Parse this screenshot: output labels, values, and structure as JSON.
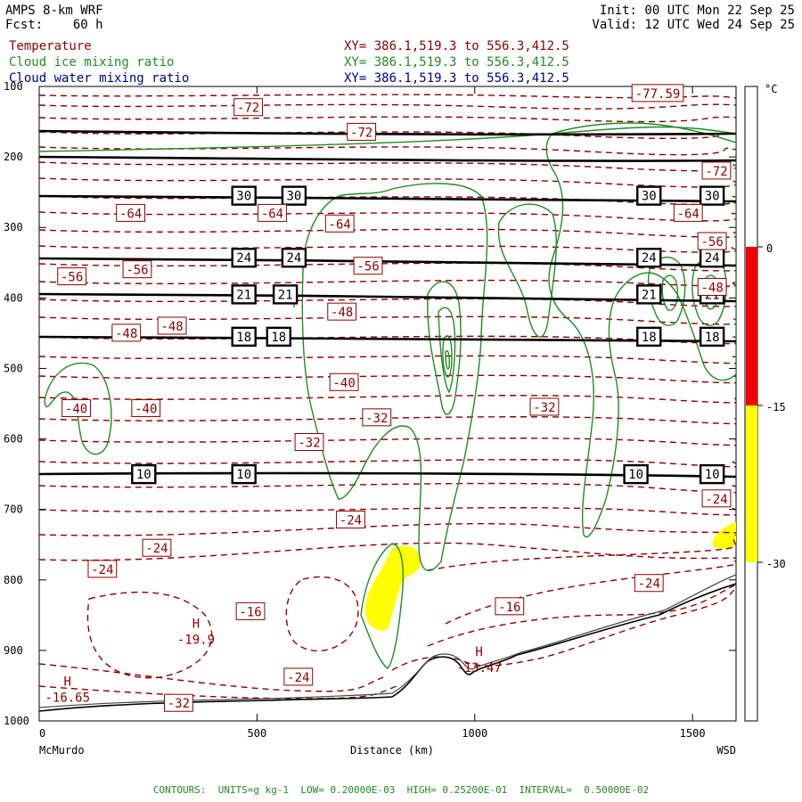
{
  "header": {
    "model": "AMPS 8-km WRF",
    "forecast": "Fcst:    60 h",
    "init": "Init: 00 UTC Mon 22 Sep 25",
    "valid": "Valid: 12 UTC Wed 24 Sep 25"
  },
  "legend": [
    {
      "name": "Temperature",
      "xy": "XY= 386.1,519.3 to 556.3,412.5",
      "color": "#8b0000"
    },
    {
      "name": "Cloud ice mixing ratio",
      "xy": "XY= 386.1,519.3 to 556.3,412.5",
      "color": "#228b22"
    },
    {
      "name": "Cloud water mixing ratio",
      "xy": "XY= 386.1,519.3 to 556.3,412.5",
      "color": "#00008b"
    }
  ],
  "footer": "CONTOURS:  UNITS=g kg-1  LOW= 0.20000E-03  HIGH= 0.25200E-01  INTERVAL=  0.50000E-02",
  "colorbar": {
    "unit": "°C",
    "ticks": [
      0,
      -15,
      -30
    ],
    "colors": {
      "top": "#ffffff",
      "red": "#ee0000",
      "yellow": "#ffff00",
      "bottom": "#ffffff"
    }
  },
  "chart_data": {
    "type": "cross-section",
    "xlabel": "Distance (km)",
    "ylabel": "",
    "xlim": [
      0,
      1600
    ],
    "ylim": [
      1000,
      100
    ],
    "x_ticks": [
      0,
      500,
      1000,
      1500
    ],
    "y_ticks": [
      100,
      200,
      300,
      400,
      500,
      600,
      700,
      800,
      900,
      1000
    ],
    "x_end_labels": {
      "left": "McMurdo",
      "right": "WSD"
    },
    "pressure_lines": [
      {
        "p": 165,
        "label": null,
        "labels_at": []
      },
      {
        "p": 200,
        "label": null,
        "labels_at": []
      },
      {
        "p": 255,
        "label": "30",
        "labels_at": [
          470,
          585,
          1400,
          1545
        ]
      },
      {
        "p": 343,
        "label": "24",
        "labels_at": [
          470,
          585,
          1400,
          1545
        ]
      },
      {
        "p": 395,
        "label": "21",
        "labels_at": [
          470,
          565,
          1400,
          1545
        ]
      },
      {
        "p": 455,
        "label": "18",
        "labels_at": [
          470,
          550,
          1400,
          1545
        ]
      },
      {
        "p": 650,
        "label": "10",
        "labels_at": [
          240,
          470,
          1370,
          1545
        ]
      }
    ],
    "temperature_labels": [
      {
        "x": 480,
        "p": 130,
        "text": "-72"
      },
      {
        "x": 740,
        "p": 165,
        "text": "-72"
      },
      {
        "x": 1555,
        "p": 220,
        "text": "-72"
      },
      {
        "x": 1420,
        "p": 110,
        "text": "-77.59"
      },
      {
        "x": 210,
        "p": 280,
        "text": "-64"
      },
      {
        "x": 535,
        "p": 280,
        "text": "-64"
      },
      {
        "x": 690,
        "p": 295,
        "text": "-64"
      },
      {
        "x": 1490,
        "p": 280,
        "text": "-64"
      },
      {
        "x": 1545,
        "p": 320,
        "text": "-56"
      },
      {
        "x": 75,
        "p": 370,
        "text": "-56"
      },
      {
        "x": 225,
        "p": 360,
        "text": "-56"
      },
      {
        "x": 755,
        "p": 355,
        "text": "-56"
      },
      {
        "x": 1545,
        "p": 385,
        "text": "-48"
      },
      {
        "x": 200,
        "p": 450,
        "text": "-48"
      },
      {
        "x": 305,
        "p": 440,
        "text": "-48"
      },
      {
        "x": 695,
        "p": 420,
        "text": "-48"
      },
      {
        "x": 700,
        "p": 520,
        "text": "-40"
      },
      {
        "x": 85,
        "p": 557,
        "text": "-40"
      },
      {
        "x": 245,
        "p": 557,
        "text": "-40"
      },
      {
        "x": 775,
        "p": 570,
        "text": "-32"
      },
      {
        "x": 620,
        "p": 605,
        "text": "-32"
      },
      {
        "x": 1160,
        "p": 555,
        "text": "-32"
      },
      {
        "x": 1555,
        "p": 685,
        "text": "-24"
      },
      {
        "x": 715,
        "p": 715,
        "text": "-24"
      },
      {
        "x": 270,
        "p": 755,
        "text": "-24"
      },
      {
        "x": 145,
        "p": 785,
        "text": "-24"
      },
      {
        "x": 1400,
        "p": 805,
        "text": "-24"
      },
      {
        "x": 595,
        "p": 938,
        "text": "-24"
      },
      {
        "x": 485,
        "p": 845,
        "text": "-16"
      },
      {
        "x": 1080,
        "p": 838,
        "text": "-16"
      },
      {
        "x": 320,
        "p": 975,
        "text": "-32"
      }
    ],
    "highs": [
      {
        "x": 360,
        "p": 868,
        "label": "H",
        "value": "-19.9"
      },
      {
        "x": 1010,
        "p": 908,
        "label": "H",
        "value": "-13.47"
      },
      {
        "x": 65,
        "p": 950,
        "label": "H",
        "value": "-16.65"
      }
    ],
    "warm_regions": [
      {
        "name": "yellow-blob-center",
        "range_c": [
          -15,
          -30
        ]
      },
      {
        "name": "yellow-blob-right",
        "range_c": [
          -15,
          -30
        ]
      }
    ]
  }
}
